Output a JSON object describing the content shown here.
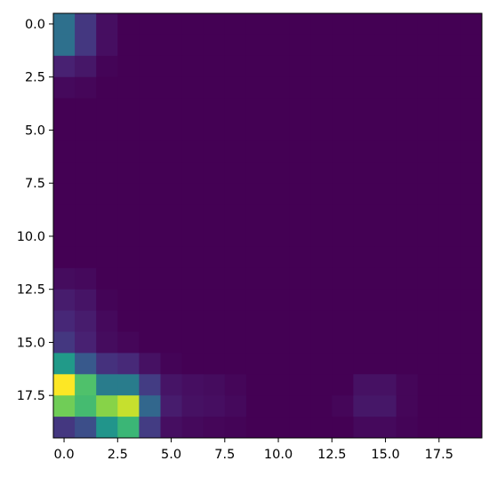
{
  "chart_data": {
    "type": "heatmap",
    "colormap": "viridis",
    "vmin": 0,
    "vmax": 1,
    "origin": "upper",
    "rows": 20,
    "cols": 20,
    "xticks": [
      0,
      2.5,
      5,
      7.5,
      10,
      12.5,
      15,
      17.5
    ],
    "xtick_labels": [
      "0.0",
      "2.5",
      "5.0",
      "7.5",
      "10.0",
      "12.5",
      "15.0",
      "17.5"
    ],
    "yticks": [
      0,
      2.5,
      5,
      7.5,
      10,
      12.5,
      15,
      17.5
    ],
    "ytick_labels": [
      "0.0",
      "2.5",
      "5.0",
      "7.5",
      "10.0",
      "12.5",
      "15.0",
      "17.5"
    ],
    "title": "",
    "xlabel": "",
    "ylabel": "",
    "grid": false,
    "values": [
      [
        0.42,
        0.2,
        0.05,
        0,
        0,
        0,
        0,
        0,
        0,
        0,
        0,
        0,
        0,
        0,
        0,
        0,
        0,
        0,
        0,
        0
      ],
      [
        0.42,
        0.2,
        0.05,
        0,
        0,
        0,
        0,
        0,
        0,
        0,
        0,
        0,
        0,
        0,
        0,
        0,
        0,
        0,
        0,
        0
      ],
      [
        0.12,
        0.08,
        0.01,
        0,
        0,
        0,
        0,
        0,
        0,
        0,
        0,
        0,
        0,
        0,
        0,
        0,
        0,
        0,
        0,
        0
      ],
      [
        0.03,
        0.02,
        0,
        0,
        0,
        0,
        0,
        0,
        0,
        0,
        0,
        0,
        0,
        0,
        0,
        0,
        0,
        0,
        0,
        0
      ],
      [
        0,
        0,
        0,
        0,
        0,
        0,
        0,
        0,
        0,
        0,
        0,
        0,
        0,
        0,
        0,
        0,
        0,
        0,
        0,
        0
      ],
      [
        0,
        0,
        0,
        0,
        0,
        0,
        0,
        0,
        0,
        0,
        0,
        0,
        0,
        0,
        0,
        0,
        0,
        0,
        0,
        0
      ],
      [
        0,
        0,
        0,
        0,
        0,
        0,
        0,
        0,
        0,
        0,
        0,
        0,
        0,
        0,
        0,
        0,
        0,
        0,
        0,
        0
      ],
      [
        0,
        0,
        0,
        0,
        0,
        0,
        0,
        0,
        0,
        0,
        0,
        0,
        0,
        0,
        0,
        0,
        0,
        0,
        0,
        0
      ],
      [
        0,
        0,
        0,
        0,
        0,
        0,
        0,
        0,
        0,
        0,
        0,
        0,
        0,
        0,
        0,
        0,
        0,
        0,
        0,
        0
      ],
      [
        0,
        0,
        0,
        0,
        0,
        0,
        0,
        0,
        0,
        0,
        0,
        0,
        0,
        0,
        0,
        0,
        0,
        0,
        0,
        0
      ],
      [
        0,
        0,
        0,
        0,
        0,
        0,
        0,
        0,
        0,
        0,
        0,
        0,
        0,
        0,
        0,
        0,
        0,
        0,
        0,
        0
      ],
      [
        0,
        0,
        0,
        0,
        0,
        0,
        0,
        0,
        0,
        0,
        0,
        0,
        0,
        0,
        0,
        0,
        0,
        0,
        0,
        0
      ],
      [
        0.04,
        0.03,
        0,
        0,
        0,
        0,
        0,
        0,
        0,
        0,
        0,
        0,
        0,
        0,
        0,
        0,
        0,
        0,
        0,
        0
      ],
      [
        0.1,
        0.07,
        0.01,
        0,
        0,
        0,
        0,
        0,
        0,
        0,
        0,
        0,
        0,
        0,
        0,
        0,
        0,
        0,
        0,
        0
      ],
      [
        0.14,
        0.1,
        0.03,
        0,
        0,
        0,
        0,
        0,
        0,
        0,
        0,
        0,
        0,
        0,
        0,
        0,
        0,
        0,
        0,
        0
      ],
      [
        0.2,
        0.12,
        0.04,
        0.02,
        0,
        0,
        0,
        0,
        0,
        0,
        0,
        0,
        0,
        0,
        0,
        0,
        0,
        0,
        0,
        0
      ],
      [
        0.55,
        0.35,
        0.18,
        0.15,
        0.06,
        0.01,
        0,
        0,
        0,
        0,
        0,
        0,
        0,
        0,
        0,
        0,
        0,
        0,
        0,
        0
      ],
      [
        1.0,
        0.72,
        0.45,
        0.45,
        0.22,
        0.07,
        0.05,
        0.04,
        0.02,
        0,
        0,
        0,
        0,
        0,
        0.06,
        0.06,
        0.02,
        0,
        0,
        0
      ],
      [
        0.78,
        0.7,
        0.82,
        0.92,
        0.4,
        0.1,
        0.06,
        0.05,
        0.03,
        0,
        0,
        0,
        0,
        0.02,
        0.08,
        0.08,
        0.02,
        0,
        0,
        0
      ],
      [
        0.2,
        0.3,
        0.52,
        0.68,
        0.22,
        0.05,
        0.03,
        0.02,
        0.01,
        0,
        0,
        0,
        0,
        0,
        0.03,
        0.03,
        0.01,
        0,
        0,
        0
      ]
    ]
  }
}
